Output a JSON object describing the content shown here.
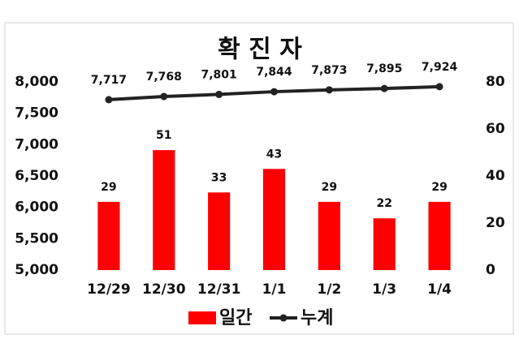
{
  "chart_data": {
    "type": "bar",
    "title": "확 진 자",
    "categories": [
      "12/29",
      "12/30",
      "12/31",
      "1/1",
      "1/2",
      "1/3",
      "1/4"
    ],
    "series": [
      {
        "name": "일간",
        "type": "bar",
        "axis": "y2",
        "color": "#ff0000",
        "values": [
          29,
          51,
          33,
          43,
          29,
          22,
          29
        ]
      },
      {
        "name": "누계",
        "type": "line",
        "color": "#222222",
        "values": [
          7717,
          7768,
          7801,
          7844,
          7873,
          7895,
          7924
        ],
        "value_labels": [
          "7,717",
          "7,768",
          "7,801",
          "7,844",
          "7,873",
          "7,895",
          "7,924"
        ]
      }
    ],
    "ylim": [
      5000,
      8000
    ],
    "yticks": [
      {
        "value": 5000,
        "label": "5,000"
      },
      {
        "value": 5500,
        "label": "5,500"
      },
      {
        "value": 6000,
        "label": "6,000"
      },
      {
        "value": 6500,
        "label": "6,500"
      },
      {
        "value": 7000,
        "label": "7,000"
      },
      {
        "value": 7500,
        "label": "7,500"
      },
      {
        "value": 8000,
        "label": "8,000"
      }
    ],
    "y2lim": [
      0,
      80
    ],
    "y2ticks": [
      0,
      20,
      40,
      60,
      80
    ],
    "grid": false,
    "legend": "bottom"
  }
}
